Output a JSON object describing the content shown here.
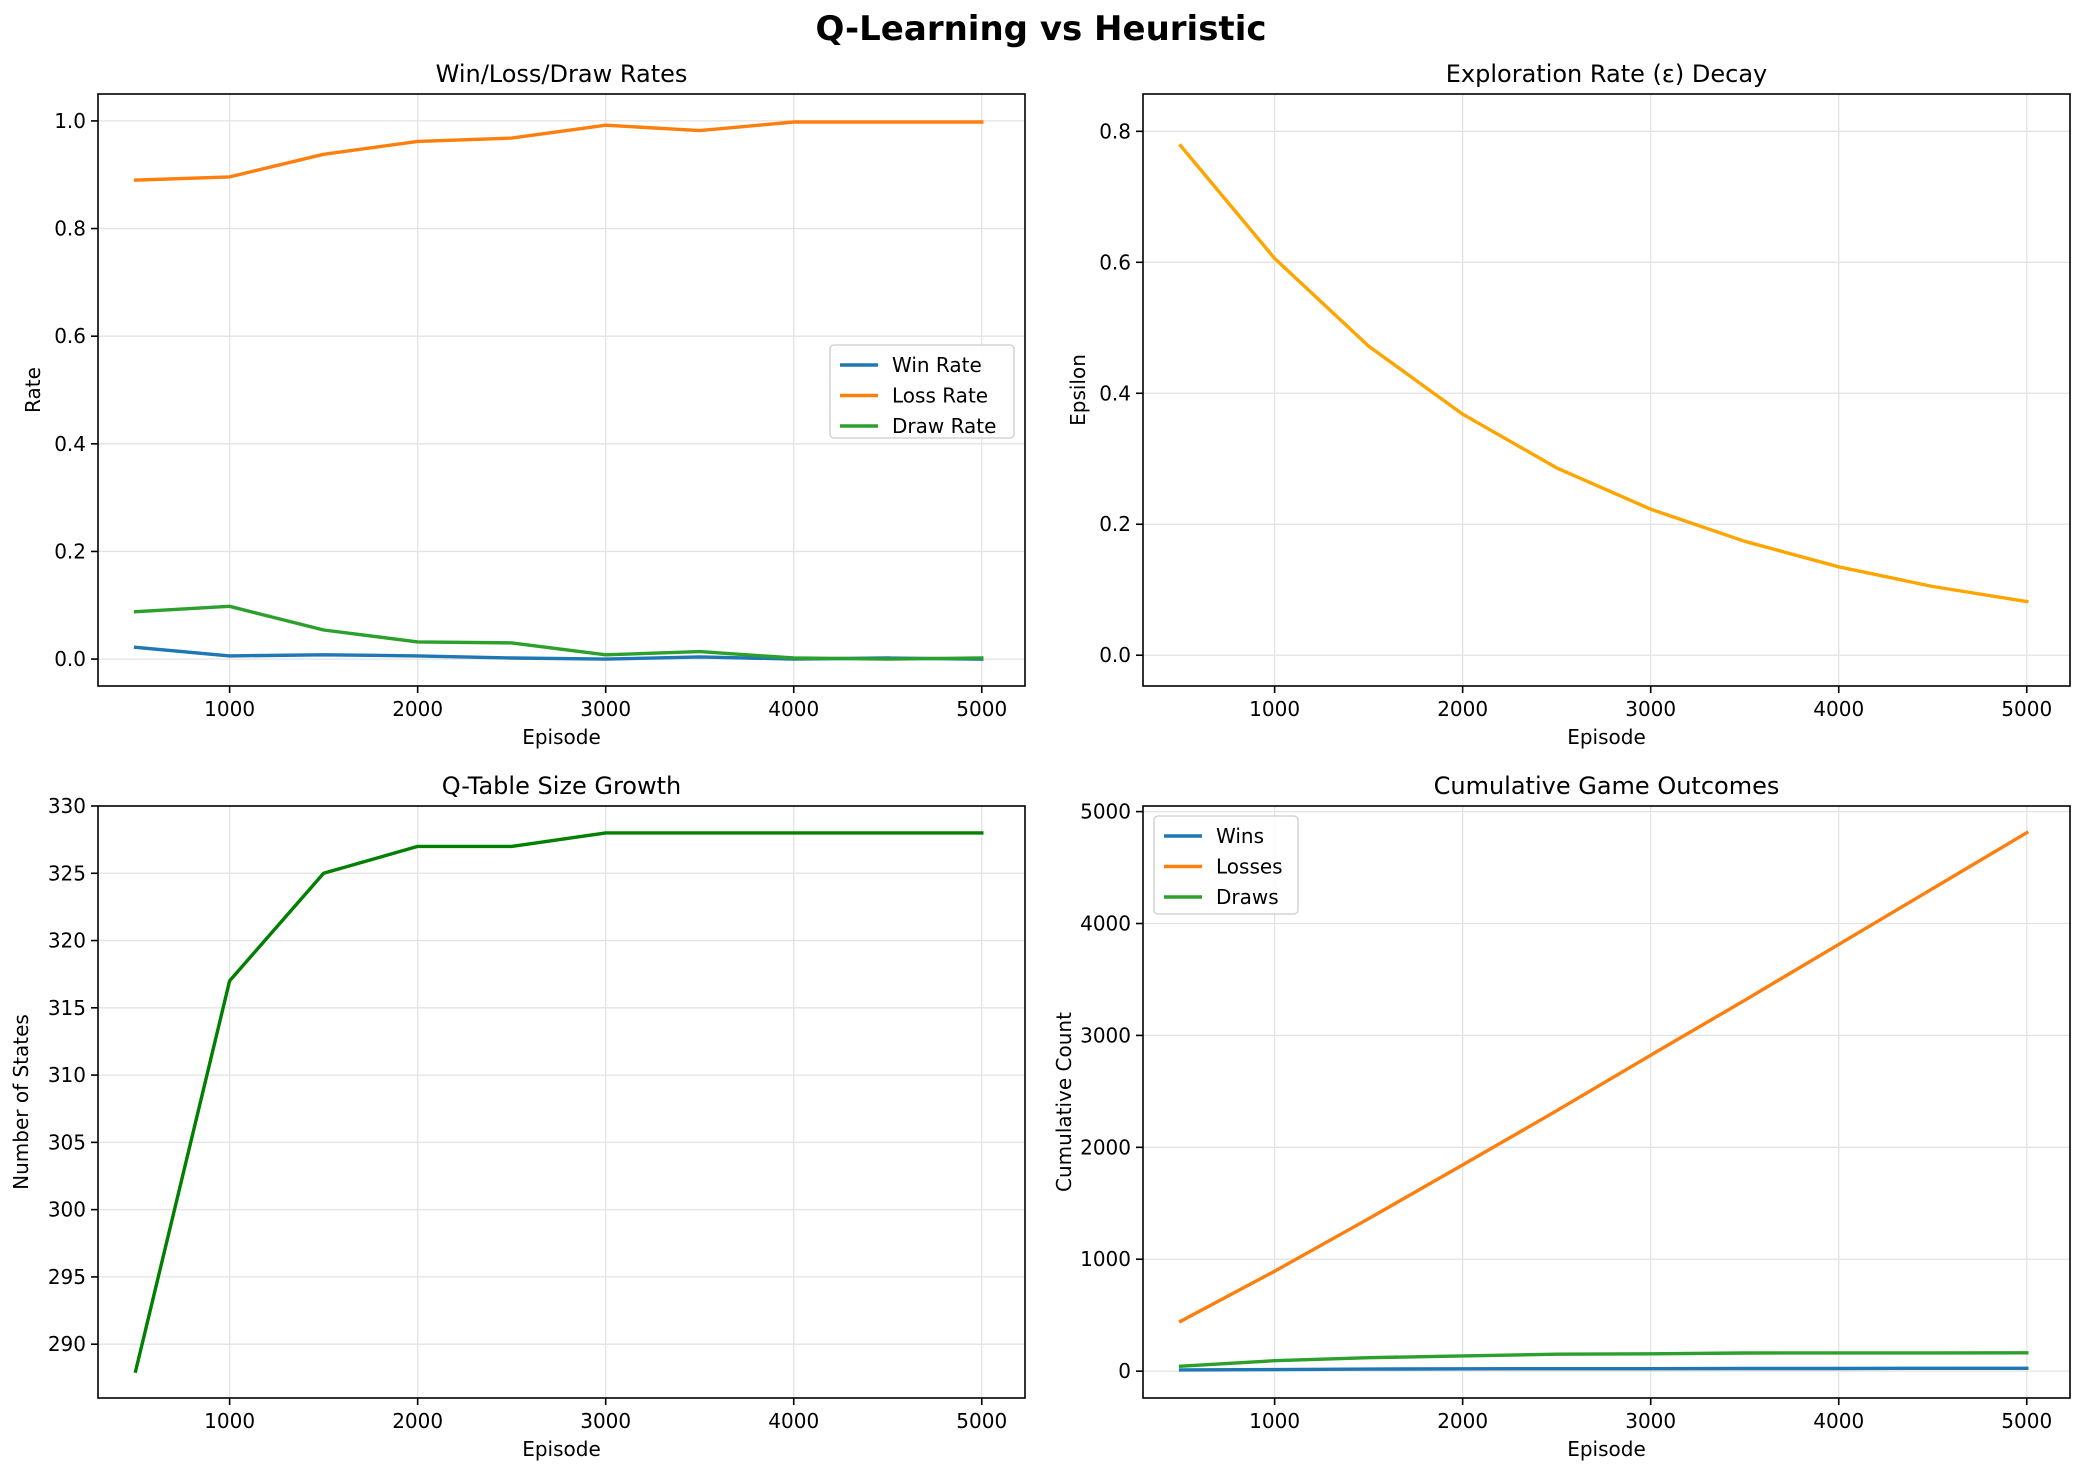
{
  "figure": {
    "title": "Q-Learning vs Heuristic"
  },
  "chart_data": [
    {
      "type": "line",
      "title": "Win/Loss/Draw Rates",
      "xlabel": "Episode",
      "ylabel": "Rate",
      "x": [
        500,
        1000,
        1500,
        2000,
        2500,
        3000,
        3500,
        4000,
        4500,
        5000
      ],
      "xlim": [
        300,
        5230
      ],
      "ylim": [
        -0.05,
        1.05
      ],
      "xticks": [
        1000,
        2000,
        3000,
        4000,
        5000
      ],
      "yticks": [
        0.0,
        0.2,
        0.4,
        0.6,
        0.8,
        1.0
      ],
      "ytick_format": "1dp",
      "grid": true,
      "legend": "center-right",
      "series": [
        {
          "name": "Win Rate",
          "color": "#1f77b4",
          "values": [
            0.022,
            0.006,
            0.008,
            0.006,
            0.002,
            0.0,
            0.004,
            0.0,
            0.002,
            0.0
          ]
        },
        {
          "name": "Loss Rate",
          "color": "#ff7f0e",
          "values": [
            0.89,
            0.896,
            0.938,
            0.962,
            0.968,
            0.992,
            0.982,
            0.998,
            0.998,
            0.998
          ]
        },
        {
          "name": "Draw Rate",
          "color": "#2ca02c",
          "values": [
            0.088,
            0.098,
            0.054,
            0.032,
            0.03,
            0.008,
            0.014,
            0.002,
            0.0,
            0.002
          ]
        }
      ]
    },
    {
      "type": "line",
      "title": "Exploration Rate (ε) Decay",
      "xlabel": "Episode",
      "ylabel": "Epsilon",
      "x": [
        500,
        1000,
        1500,
        2000,
        2500,
        3000,
        3500,
        4000,
        4500,
        5000
      ],
      "xlim": [
        300,
        5230
      ],
      "ylim": [
        -0.047,
        0.857
      ],
      "xticks": [
        1000,
        2000,
        3000,
        4000,
        5000
      ],
      "yticks": [
        0.0,
        0.2,
        0.4,
        0.6,
        0.8
      ],
      "ytick_format": "1dp",
      "grid": true,
      "series": [
        {
          "name": "",
          "color": "#ffa500",
          "values": [
            0.778,
            0.606,
            0.472,
            0.368,
            0.286,
            0.223,
            0.174,
            0.135,
            0.105,
            0.082
          ]
        }
      ]
    },
    {
      "type": "line",
      "title": "Q-Table Size Growth",
      "xlabel": "Episode",
      "ylabel": "Number of States",
      "x": [
        500,
        1000,
        1500,
        2000,
        2500,
        3000,
        3500,
        4000,
        4500,
        5000
      ],
      "xlim": [
        300,
        5230
      ],
      "ylim": [
        286,
        330
      ],
      "xticks": [
        1000,
        2000,
        3000,
        4000,
        5000
      ],
      "yticks": [
        290,
        295,
        300,
        305,
        310,
        315,
        320,
        325,
        330
      ],
      "ytick_format": "int",
      "grid": true,
      "series": [
        {
          "name": "",
          "color": "#008000",
          "values": [
            288,
            317,
            325,
            327,
            327,
            328,
            328,
            328,
            328,
            328
          ]
        }
      ]
    },
    {
      "type": "line",
      "title": "Cumulative Game Outcomes",
      "xlabel": "Episode",
      "ylabel": "Cumulative Count",
      "x": [
        500,
        1000,
        1500,
        2000,
        2500,
        3000,
        3500,
        4000,
        4500,
        5000
      ],
      "xlim": [
        300,
        5230
      ],
      "ylim": [
        -240,
        5050
      ],
      "xticks": [
        1000,
        2000,
        3000,
        4000,
        5000
      ],
      "yticks": [
        0,
        1000,
        2000,
        3000,
        4000,
        5000
      ],
      "ytick_format": "int",
      "grid": true,
      "legend": "top-left",
      "series": [
        {
          "name": "Wins",
          "color": "#1f77b4",
          "values": [
            11,
            14,
            18,
            21,
            22,
            22,
            24,
            24,
            25,
            25
          ]
        },
        {
          "name": "Losses",
          "color": "#ff7f0e",
          "values": [
            445,
            893,
            1362,
            1843,
            2327,
            2823,
            3314,
            3813,
            4312,
            4811
          ]
        },
        {
          "name": "Draws",
          "color": "#2ca02c",
          "values": [
            44,
            93,
            120,
            136,
            151,
            155,
            162,
            163,
            163,
            164
          ]
        }
      ]
    }
  ]
}
